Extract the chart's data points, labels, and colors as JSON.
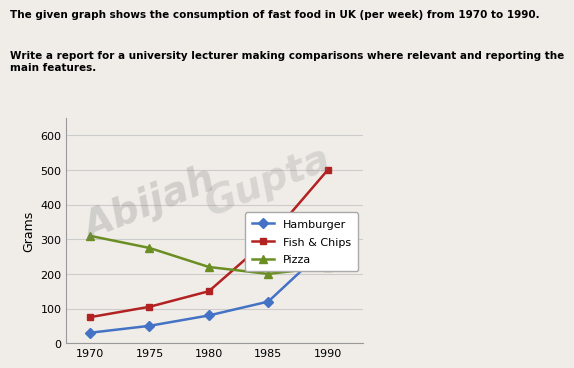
{
  "title_line1": "The given graph shows the consumption of fast food in UK (per week) from 1970 to 1990.",
  "title_line2": "Write a report for a university lecturer making comparisons where relevant and reporting the\nmain features.",
  "years": [
    1970,
    1975,
    1980,
    1985,
    1990
  ],
  "hamburger": [
    30,
    50,
    80,
    120,
    280
  ],
  "fish_chips": [
    75,
    105,
    150,
    300,
    500
  ],
  "pizza": [
    310,
    275,
    220,
    200,
    220
  ],
  "hamburger_color": "#4472C4",
  "fish_chips_color": "#B22222",
  "pizza_color": "#6B8E23",
  "ylabel": "Grams",
  "ylim": [
    0,
    650
  ],
  "yticks": [
    0,
    100,
    200,
    300,
    400,
    500,
    600
  ],
  "xlim": [
    1968,
    1993
  ],
  "xticks": [
    1970,
    1975,
    1980,
    1985,
    1990
  ],
  "legend_hamburger": "Hamburger",
  "legend_fish": "Fish & Chips",
  "legend_pizza": "Pizza",
  "background_color": "#f0ede8",
  "plot_bg_color": "#f0ede8",
  "watermark1": "Abijah",
  "watermark2": "Gupta"
}
